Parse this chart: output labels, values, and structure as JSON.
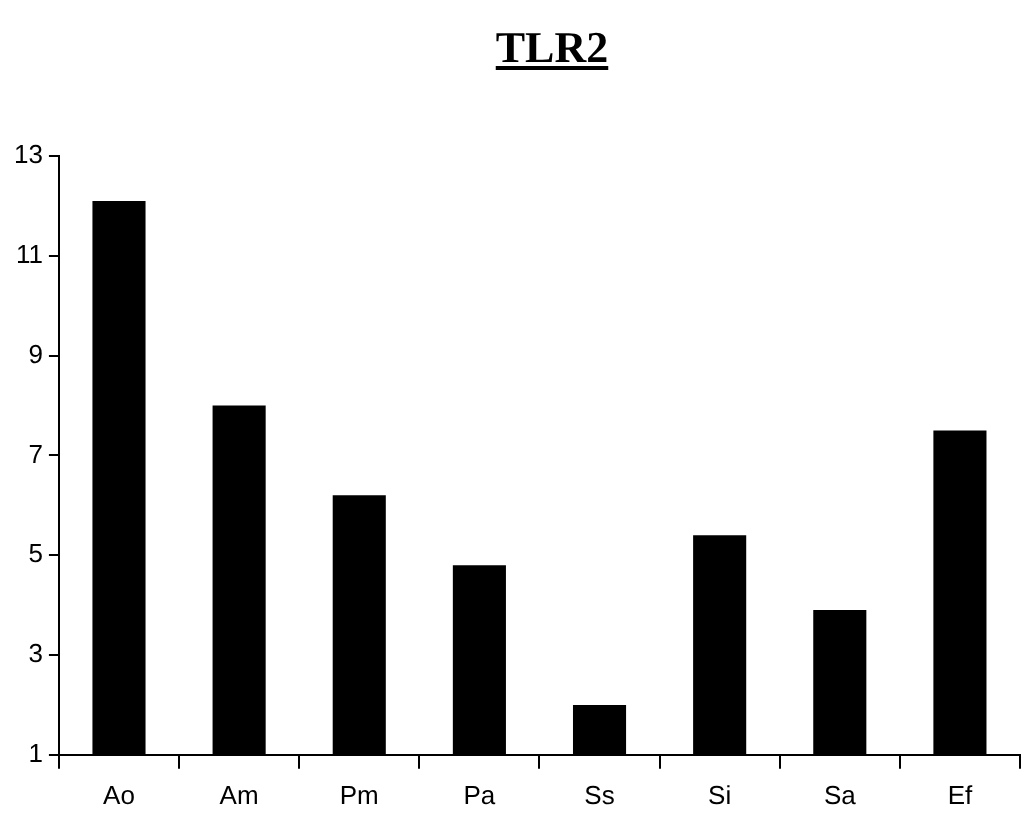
{
  "chart_data": {
    "type": "bar",
    "title": "TLR2",
    "categories": [
      "Ao",
      "Am",
      "Pm",
      "Pa",
      "Ss",
      "Si",
      "Sa",
      "Ef"
    ],
    "values": [
      12.1,
      8.0,
      6.2,
      4.8,
      2.0,
      5.4,
      3.9,
      7.5
    ],
    "color": "#000000",
    "ylim": [
      1,
      13
    ],
    "yticks": [
      1,
      3,
      5,
      7,
      9,
      11,
      13
    ],
    "grid": false,
    "legend": false
  }
}
